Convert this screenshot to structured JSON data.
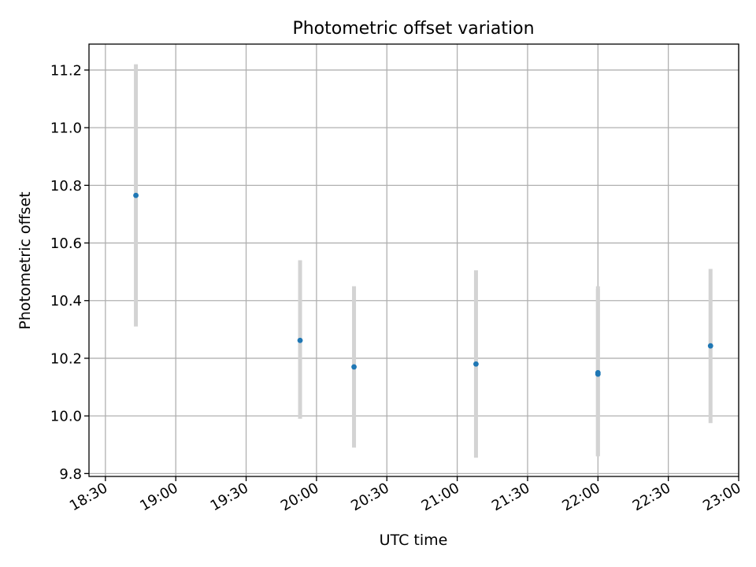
{
  "chart_data": {
    "type": "scatter",
    "title": "Photometric offset variation",
    "xlabel": "UTC time",
    "ylabel": "Photometric offset",
    "x_tick_labels": [
      "18:30",
      "19:00",
      "19:30",
      "20:00",
      "20:30",
      "21:00",
      "21:30",
      "22:00",
      "22:30",
      "23:00"
    ],
    "x_tick_values": [
      "18:30",
      "19:00",
      "19:30",
      "20:00",
      "20:30",
      "21:00",
      "21:30",
      "22:00",
      "22:30",
      "23:00"
    ],
    "y_tick_labels": [
      "9.8",
      "10.0",
      "10.2",
      "10.4",
      "10.6",
      "10.8",
      "11.0",
      "11.2"
    ],
    "y_tick_values": [
      9.8,
      10.0,
      10.2,
      10.4,
      10.6,
      10.8,
      11.0,
      11.2
    ],
    "xlim": [
      "18:23",
      "23:00"
    ],
    "ylim": [
      9.79,
      11.29
    ],
    "grid": true,
    "colors": {
      "point": "#1f77b4",
      "errorbar": "#d3d3d3",
      "grid": "#b0b0b0"
    },
    "points": [
      {
        "x": "18:43",
        "y": 10.765,
        "y_low": 10.31,
        "y_high": 11.22
      },
      {
        "x": "19:53",
        "y": 10.262,
        "y_low": 9.99,
        "y_high": 10.54
      },
      {
        "x": "20:16",
        "y": 10.17,
        "y_low": 9.89,
        "y_high": 10.45
      },
      {
        "x": "21:08",
        "y": 10.18,
        "y_low": 9.855,
        "y_high": 10.505
      },
      {
        "x": "22:00",
        "y": 10.15,
        "y_low": 9.86,
        "y_high": 10.45
      },
      {
        "x": "22:00",
        "y": 10.145,
        "y_low": 9.86,
        "y_high": 10.44
      },
      {
        "x": "22:48",
        "y": 10.243,
        "y_low": 9.975,
        "y_high": 10.51
      }
    ]
  }
}
